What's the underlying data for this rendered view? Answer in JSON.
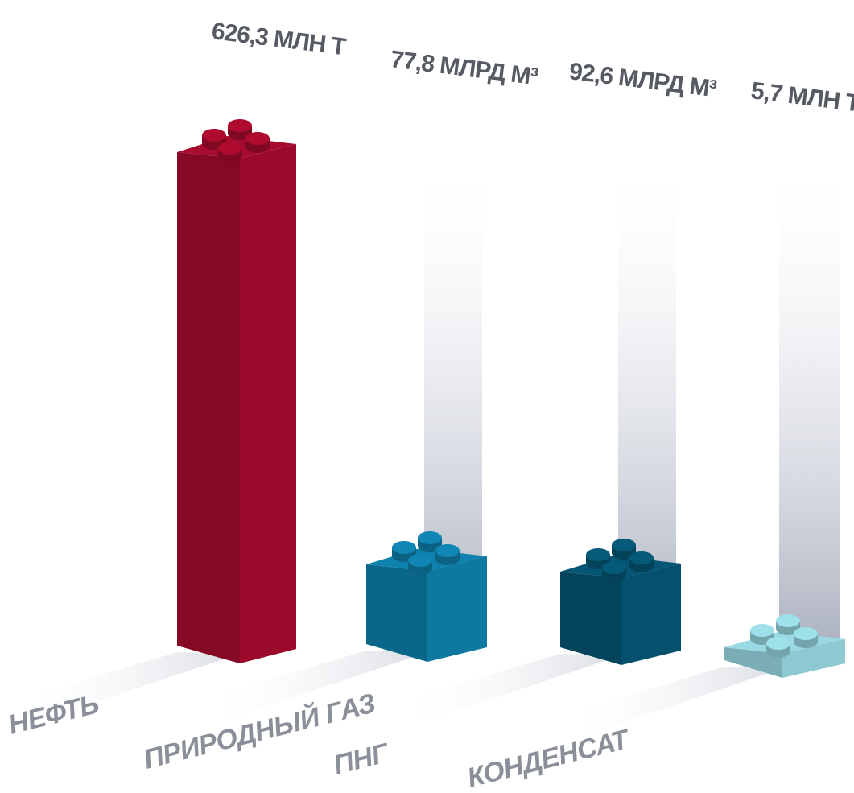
{
  "chart_data": {
    "type": "bar",
    "title": "",
    "xlabel": "",
    "ylabel": "",
    "categories": [
      "НЕФТЬ",
      "ПРИРОДНЫЙ ГАЗ",
      "ПНГ",
      "КОНДЕНСАТ"
    ],
    "value_labels": [
      "626,3 МЛН Т",
      "77,8 МЛРД М³",
      "92,6 МЛРД М³",
      "5,7 МЛН Т"
    ],
    "values": [
      626.3,
      77.8,
      92.6,
      5.7
    ],
    "units": [
      "МЛН Т",
      "МЛРД М³",
      "МЛРД М³",
      "МЛН Т"
    ],
    "grid": false,
    "legend": "none",
    "colors": {
      "НЕФТЬ": "#9b0a2a",
      "ПРИРОДНЫЙ ГАЗ": "#0d78a0",
      "ПНГ": "#05506c",
      "КОНДЕНСАТ": "#8ec9d2"
    }
  }
}
